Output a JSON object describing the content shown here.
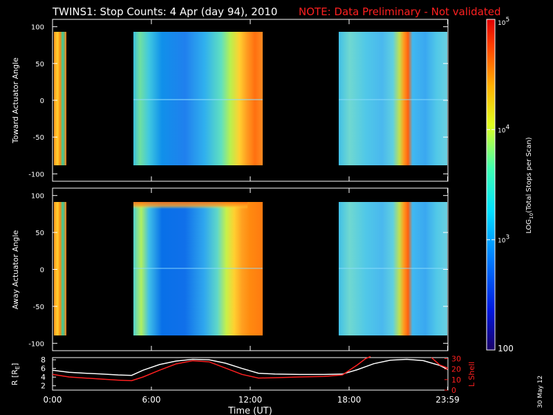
{
  "title": "TWINS1: Stop Counts:  4 Apr (day  94), 2010",
  "note": "NOTE: Data Preliminary - Not validated",
  "side_date": "30 May 12",
  "colorbar": {
    "label": "LOG10(Total Stops per Scan)",
    "label_main": "LOG",
    "label_sub": "10",
    "label_rest": "(Total Stops per Scan)",
    "ticks": [
      {
        "value": 100,
        "label": "100"
      },
      {
        "value": 1000,
        "label": "10",
        "exp": "3"
      },
      {
        "value": 10000,
        "label": "10",
        "exp": "4"
      },
      {
        "value": 100000,
        "label": "10",
        "exp": "5"
      }
    ],
    "range": [
      100,
      100000
    ],
    "scale": "log"
  },
  "chart_data": [
    {
      "type": "heatmap",
      "ylabel": "Toward Actuator Angle",
      "ylim": [
        -110,
        110
      ],
      "yticks": [
        "100",
        "50",
        "0",
        "-50",
        "-100"
      ],
      "ytick_values": [
        100,
        50,
        0,
        -50,
        -100
      ],
      "xlim_hours": [
        0,
        24
      ],
      "data_blocks": [
        {
          "start_hour": 0.1,
          "end_hour": 0.5,
          "angle_range": [
            -88,
            90
          ],
          "level": "orange-red"
        },
        {
          "start_hour": 4.7,
          "end_hour": 12.9,
          "angle_range": [
            -88,
            90
          ],
          "level": "cyan-blue, orange at end"
        },
        {
          "start_hour": 17.6,
          "end_hour": 24.0,
          "angle_range": [
            -88,
            90
          ],
          "level": "blue, orange band near 21:00"
        }
      ]
    },
    {
      "type": "heatmap",
      "ylabel": "Away Actuator Angle",
      "ylim": [
        -110,
        110
      ],
      "yticks": [
        "100",
        "50",
        "0",
        "-50",
        "-100"
      ],
      "ytick_values": [
        100,
        50,
        0,
        -50,
        -100
      ],
      "xlim_hours": [
        0,
        24
      ],
      "data_blocks": [
        {
          "start_hour": 0.1,
          "end_hour": 0.5,
          "angle_range": [
            -88,
            90
          ],
          "level": "orange-red"
        },
        {
          "start_hour": 4.7,
          "end_hour": 12.9,
          "angle_range": [
            -88,
            90
          ],
          "level": "blue-cyan, orange top band"
        },
        {
          "start_hour": 17.6,
          "end_hour": 24.0,
          "angle_range": [
            -88,
            90
          ],
          "level": "blue, orange band near 21:00"
        }
      ]
    },
    {
      "type": "line",
      "xlabel": "Time (UT)",
      "xticks": [
        "0:00",
        "6:00",
        "12:00",
        "18:00",
        "23:59"
      ],
      "xtick_hours": [
        0,
        6,
        12,
        18,
        23.98
      ],
      "ylabel": "R [RE]",
      "ylabel_main": "R [R",
      "ylabel_sub": "E",
      "ylabel_end": "]",
      "yticks": [
        "8",
        "6",
        "4",
        "2"
      ],
      "ytick_values": [
        8,
        6,
        4,
        2
      ],
      "ylim": [
        1,
        8.5
      ],
      "y2label": "L Shell",
      "y2ticks": [
        "30",
        "20",
        "10",
        "0"
      ],
      "y2tick_values": [
        30,
        20,
        10,
        0
      ],
      "y2lim": [
        0,
        31
      ],
      "series": [
        {
          "name": "R",
          "color": "#ffffff",
          "x": [
            0,
            1,
            2,
            3,
            4,
            4.8,
            5.5,
            6.5,
            7.5,
            8.5,
            9.5,
            10.5,
            11.5,
            12.5,
            13.5,
            15,
            16.5,
            17.6,
            18.5,
            19.5,
            20.5,
            21.5,
            22.5,
            23.5,
            24
          ],
          "y": [
            5.6,
            5.1,
            4.9,
            4.7,
            4.5,
            4.4,
            5.6,
            6.9,
            7.7,
            8.1,
            8.0,
            7.2,
            6.0,
            4.9,
            4.7,
            4.6,
            4.6,
            4.7,
            5.7,
            7.1,
            7.9,
            8.1,
            7.8,
            6.7,
            5.7
          ]
        },
        {
          "name": "L Shell",
          "color": "#ff2020",
          "x": [
            0,
            1,
            2,
            3,
            4,
            4.8,
            5.5,
            6.5,
            7.5,
            8.5,
            9.5,
            10.5,
            11.5,
            12.5,
            13.5,
            15,
            16.5,
            17.6,
            18.5,
            19.0,
            19.3
          ],
          "y": [
            15.0,
            12.5,
            11.5,
            10.5,
            9.5,
            9.0,
            12.5,
            19.0,
            25.0,
            28.0,
            27.0,
            21.0,
            15.0,
            11.5,
            11.8,
            12.5,
            13.0,
            14.5,
            24.0,
            30.0,
            32.0
          ]
        },
        {
          "name": "L Shell (end)",
          "color": "#ff2020",
          "x": [
            23.0,
            23.5,
            24
          ],
          "y": [
            31.0,
            24.0,
            21.0
          ]
        }
      ]
    }
  ]
}
